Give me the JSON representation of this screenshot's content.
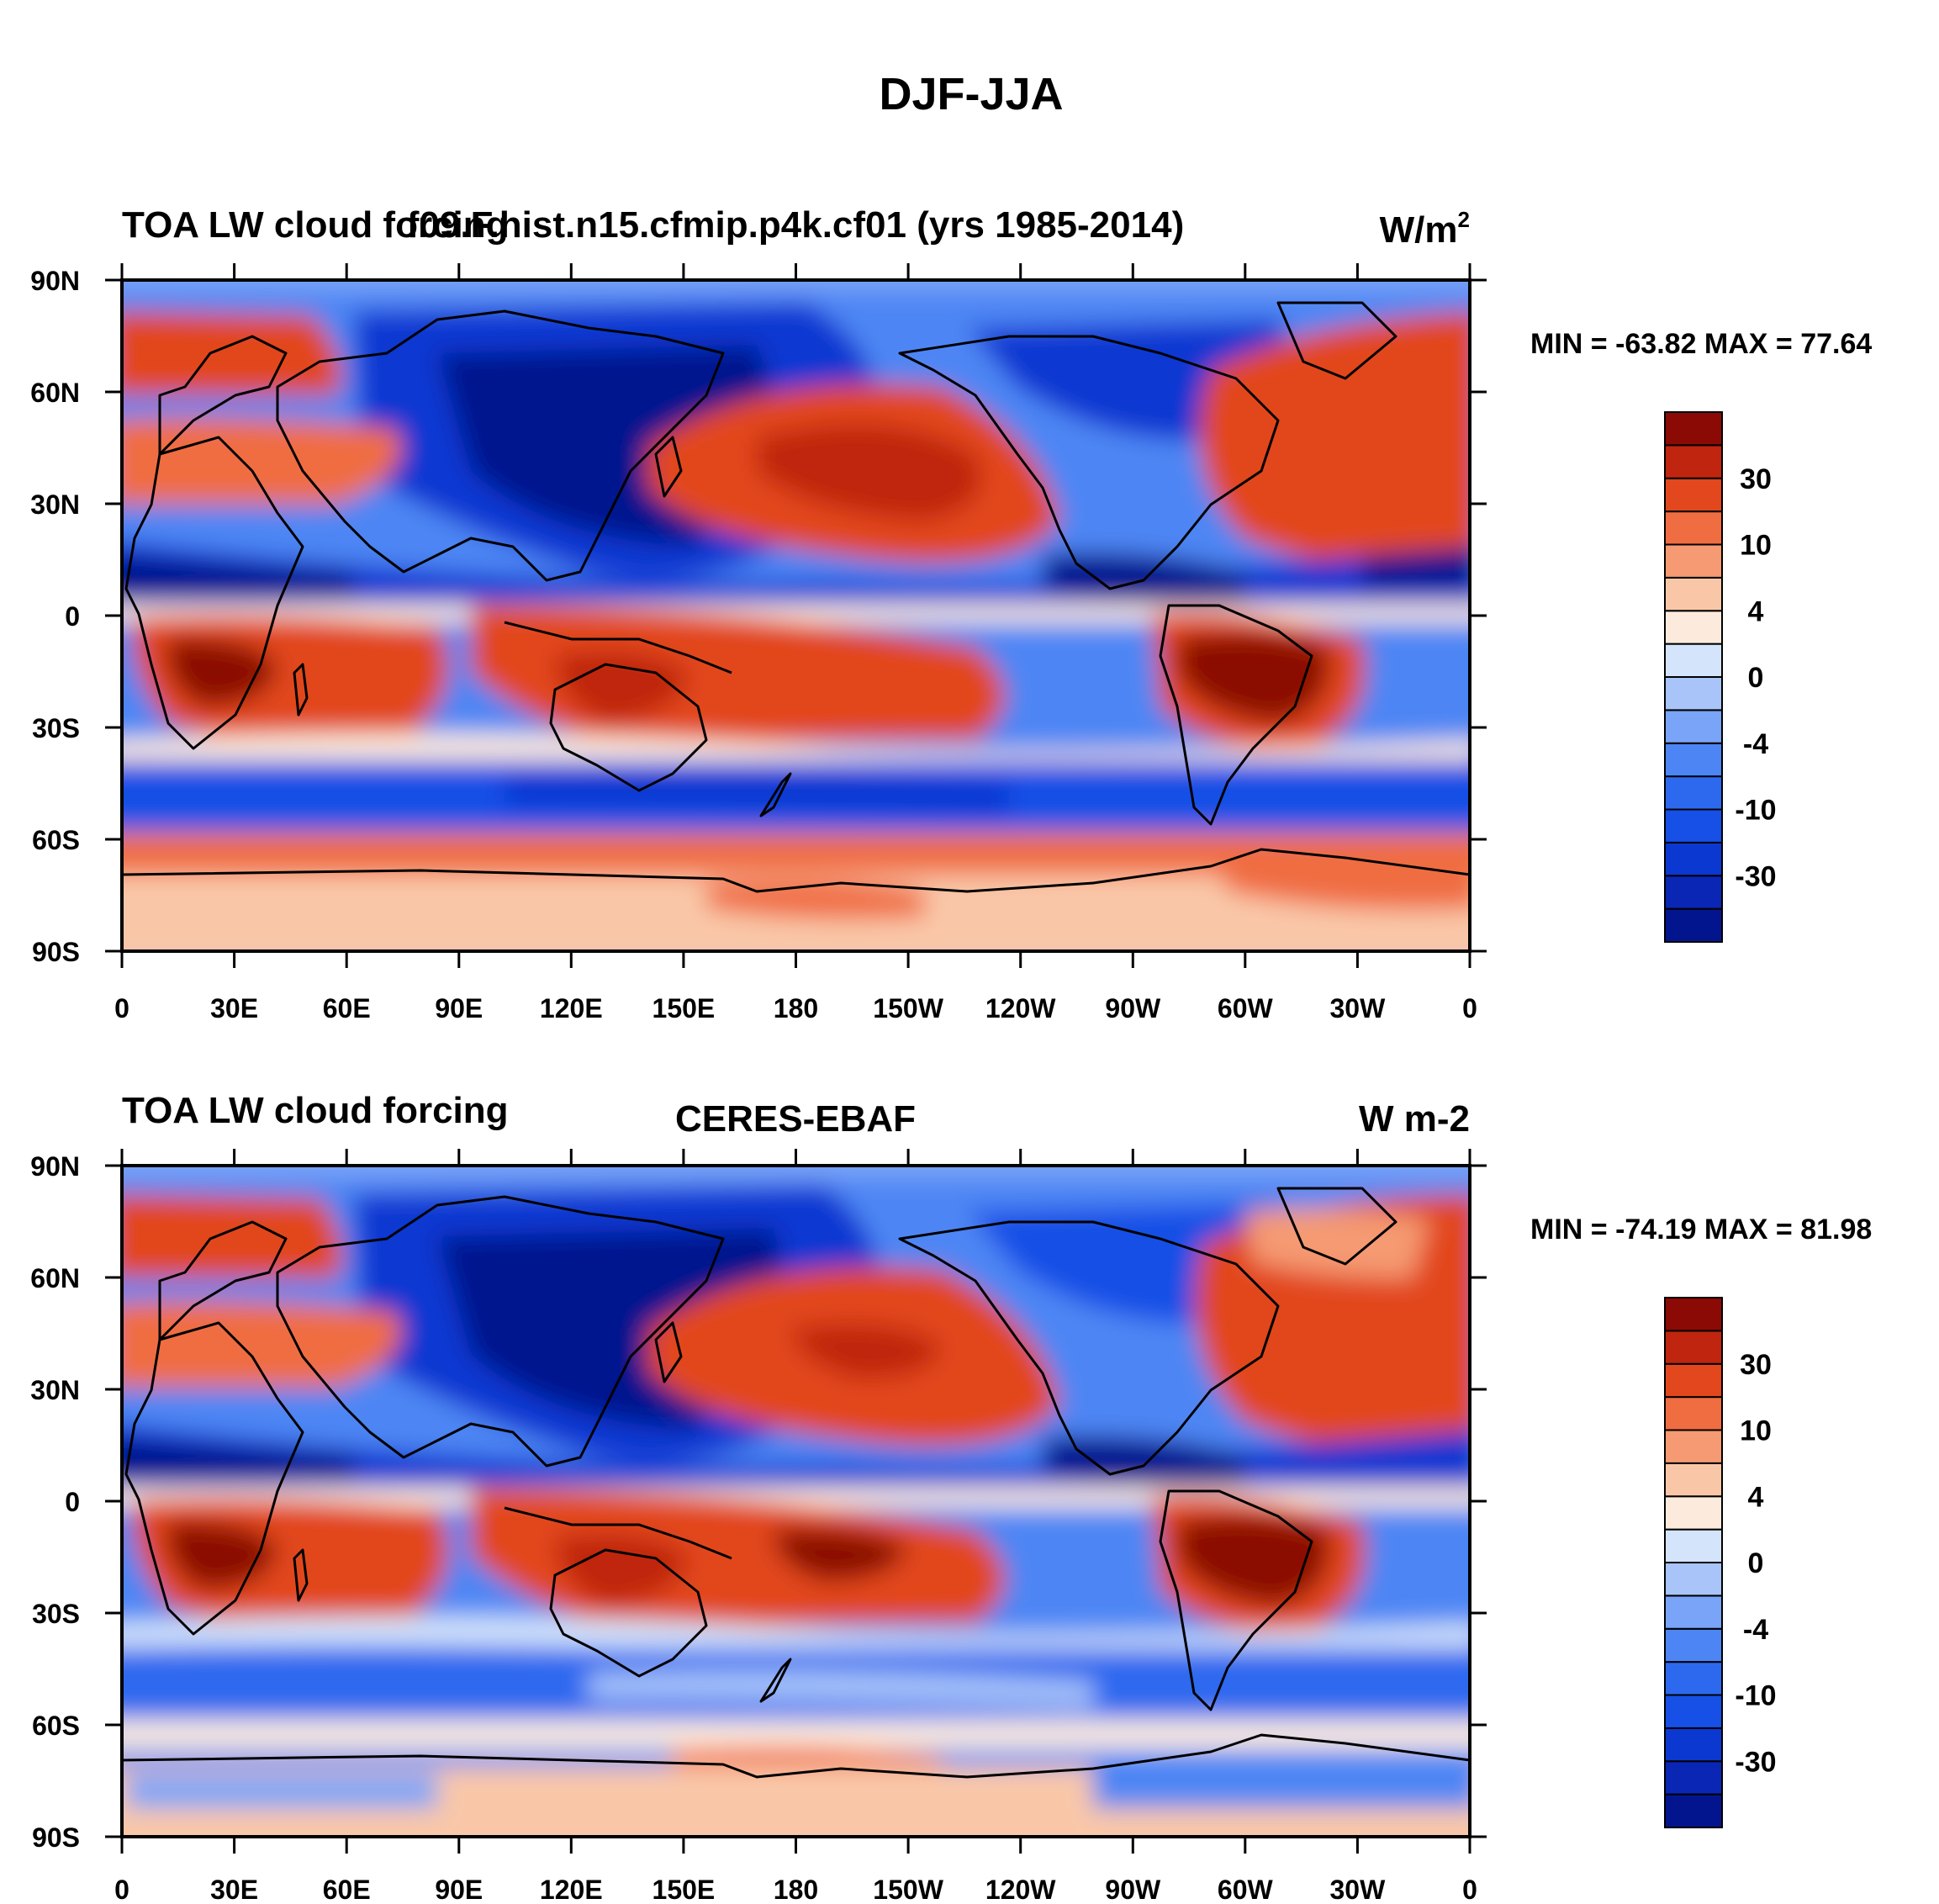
{
  "figure_title": "DJF-JJA",
  "colorbar": {
    "colors": [
      "#03158e",
      "#0a26b4",
      "#0c38d2",
      "#1650e6",
      "#2d69ef",
      "#4d86f4",
      "#7aa4f7",
      "#a8c4f9",
      "#d3e4fb",
      "#fcebdd",
      "#f9c7a8",
      "#f59a72",
      "#f06d42",
      "#e2471d",
      "#c02510",
      "#8b0a06"
    ],
    "labels": [
      {
        "text": "30",
        "boundary": 2
      },
      {
        "text": "10",
        "boundary": 4
      },
      {
        "text": "4",
        "boundary": 6
      },
      {
        "text": "0",
        "boundary": 8
      },
      {
        "text": "-4",
        "boundary": 10
      },
      {
        "text": "-10",
        "boundary": 12
      },
      {
        "text": "-30",
        "boundary": 14
      }
    ]
  },
  "panels": [
    {
      "left_title": "TOA LW cloud forcing",
      "center_title": "f09.F.hist.n15.cfmip.p4k.cf01 (yrs 1985-2014)",
      "units": "W/m",
      "units_sup": "2",
      "stats": "MIN = -63.82 MAX =  77.64",
      "y_ticks": [
        "90N",
        "60N",
        "30N",
        "0",
        "30S",
        "60S",
        "90S"
      ],
      "x_ticks": [
        "0",
        "30E",
        "60E",
        "90E",
        "120E",
        "150E",
        "180",
        "150W",
        "120W",
        "90W",
        "60W",
        "30W",
        "0"
      ]
    },
    {
      "left_title": "TOA LW cloud forcing",
      "center_title": "CERES-EBAF",
      "units": "W m-2",
      "units_sup": "",
      "stats": "MIN = -74.19 MAX =  81.98",
      "y_ticks": [
        "90N",
        "60N",
        "30N",
        "0",
        "30S",
        "60S",
        "90S"
      ],
      "x_ticks": [
        "0",
        "30E",
        "60E",
        "90E",
        "120E",
        "150E",
        "180",
        "150W",
        "120W",
        "90W",
        "60W",
        "30W",
        "0"
      ]
    }
  ]
}
